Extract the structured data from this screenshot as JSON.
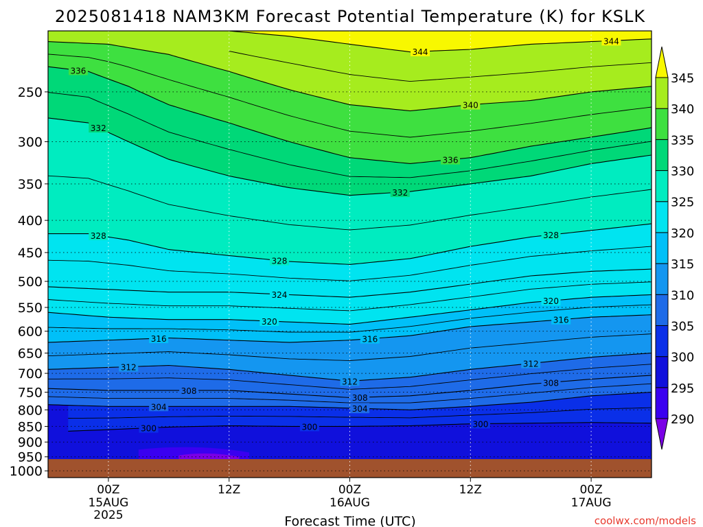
{
  "chart_data": {
    "type": "heatmap",
    "title": "2025081418 NAM3KM Forecast Potential Temperature (K) for KSLK",
    "xlabel": "Forecast Time (UTC)",
    "ylabel": "",
    "watermark": "coolwx.com/models",
    "x_ticks": [
      {
        "label": "00Z",
        "sub": [
          "15AUG",
          "2025"
        ],
        "hour": 6
      },
      {
        "label": "12Z",
        "sub": [],
        "hour": 18
      },
      {
        "label": "00Z",
        "sub": [
          "16AUG"
        ],
        "hour": 30
      },
      {
        "label": "12Z",
        "sub": [],
        "hour": 42
      },
      {
        "label": "00Z",
        "sub": [
          "17AUG"
        ],
        "hour": 54
      }
    ],
    "xlim_hours": [
      0,
      60
    ],
    "pressure_levels": [
      250,
      300,
      350,
      400,
      450,
      500,
      550,
      600,
      650,
      700,
      750,
      800,
      850,
      900,
      950,
      1000
    ],
    "ylim": [
      200,
      1025
    ],
    "y_scale": "log-pressure (inverted)",
    "surface_pressure": 958,
    "colorbar": {
      "ticks": [
        290,
        295,
        300,
        305,
        310,
        315,
        320,
        325,
        330,
        335,
        340,
        345
      ],
      "colors": {
        "285": "#7a00e6",
        "290": "#3a00f0",
        "295": "#1010dc",
        "300": "#0a2fe8",
        "305": "#1e6be8",
        "310": "#1496f0",
        "315": "#00c0f8",
        "320": "#00e4f0",
        "325": "#00ecc0",
        "330": "#00d878",
        "335": "#3ee040",
        "340": "#a6ec1e",
        "345": "#f8f800"
      }
    },
    "grid": true,
    "series": [
      {
        "name": "300",
        "x": [
          2,
          6,
          12,
          18,
          24,
          30,
          36,
          42,
          48,
          54,
          60
        ],
        "y": [
          865,
          860,
          852,
          848,
          850,
          850,
          848,
          842,
          840,
          838,
          840
        ]
      },
      {
        "name": "304",
        "x": [
          0,
          6,
          12,
          18,
          24,
          30,
          36,
          42,
          48,
          54,
          60
        ],
        "y": [
          785,
          790,
          790,
          790,
          790,
          795,
          800,
          790,
          778,
          760,
          750
        ]
      },
      {
        "name": "308",
        "x": [
          0,
          6,
          12,
          18,
          24,
          30,
          36,
          42,
          48,
          54,
          60
        ],
        "y": [
          740,
          745,
          745,
          745,
          755,
          765,
          760,
          745,
          728,
          715,
          705
        ]
      },
      {
        "name": "312",
        "x": [
          0,
          6,
          12,
          18,
          24,
          30,
          36,
          42,
          48,
          54,
          60
        ],
        "y": [
          690,
          685,
          680,
          690,
          705,
          720,
          710,
          690,
          675,
          660,
          650
        ]
      },
      {
        "name": "316",
        "x": [
          0,
          6,
          12,
          18,
          24,
          30,
          36,
          42,
          48,
          54,
          60
        ],
        "y": [
          625,
          620,
          615,
          620,
          625,
          620,
          610,
          590,
          580,
          570,
          565
        ]
      },
      {
        "name": "320",
        "x": [
          0,
          6,
          12,
          18,
          24,
          30,
          36,
          42,
          48,
          54,
          60
        ],
        "y": [
          560,
          570,
          575,
          575,
          580,
          585,
          570,
          555,
          540,
          530,
          525
        ]
      },
      {
        "name": "324",
        "x": [
          0,
          6,
          12,
          18,
          24,
          30,
          36,
          42,
          48,
          54,
          60
        ],
        "y": [
          510,
          515,
          520,
          520,
          525,
          530,
          520,
          505,
          490,
          482,
          478
        ]
      },
      {
        "name": "328",
        "x": [
          0,
          4,
          8,
          12,
          18,
          24,
          30,
          36,
          42,
          48,
          54,
          60
        ],
        "y": [
          420,
          420,
          430,
          445,
          455,
          465,
          470,
          460,
          440,
          425,
          415,
          405
        ]
      },
      {
        "name": "332",
        "x": [
          0,
          4,
          8,
          12,
          18,
          24,
          30,
          36,
          42,
          48,
          54,
          60
        ],
        "y": [
          275,
          280,
          300,
          320,
          340,
          355,
          365,
          360,
          350,
          340,
          325,
          315
        ]
      },
      {
        "name": "336",
        "x": [
          0,
          4,
          8,
          12,
          18,
          24,
          30,
          36,
          42,
          48,
          54,
          60
        ],
        "y": [
          228,
          232,
          245,
          262,
          280,
          300,
          318,
          325,
          318,
          305,
          295,
          285
        ]
      },
      {
        "name": "340",
        "x": [
          0,
          6,
          12,
          18,
          24,
          30,
          36,
          42,
          48,
          54,
          60
        ],
        "y": [
          208,
          210,
          218,
          232,
          248,
          262,
          268,
          262,
          258,
          250,
          245
        ]
      },
      {
        "name": "344",
        "x": [
          18,
          24,
          30,
          36,
          42,
          48,
          54,
          60
        ],
        "y": [
          200,
          204,
          210,
          216,
          214,
          210,
          208,
          206
        ]
      }
    ]
  }
}
